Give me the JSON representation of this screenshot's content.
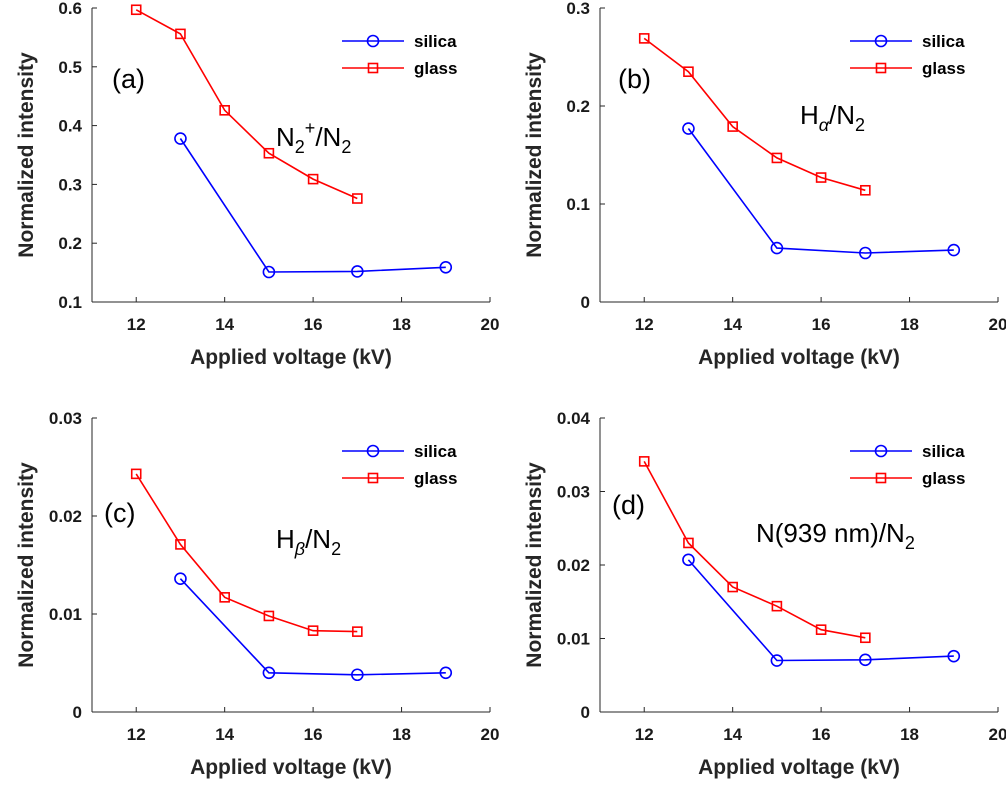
{
  "figure": {
    "x_axis_label": "Applied voltage (kV)",
    "y_axis_label": "Normalized intensity"
  },
  "colors": {
    "silica": "#0000ff",
    "glass": "#ff0000",
    "axis": "#262626"
  },
  "legend": {
    "silica": "silica",
    "glass": "glass"
  },
  "chart_data": [
    {
      "type": "line",
      "panel": "(a)",
      "annotation": {
        "base": "N",
        "sub": "2",
        "sup": "+",
        "rest": "/N",
        "sub2": "2"
      },
      "xlabel": "Applied voltage (kV)",
      "ylabel": "Normalized intensity",
      "xlim": [
        11,
        20
      ],
      "ylim": [
        0.1,
        0.6
      ],
      "xticks": [
        "12",
        "14",
        "16",
        "18",
        "20"
      ],
      "xtick_values": [
        12,
        14,
        16,
        18,
        20
      ],
      "yticks": [
        "0.1",
        "0.2",
        "0.3",
        "0.4",
        "0.5",
        "0.6"
      ],
      "ytick_values": [
        0.1,
        0.2,
        0.3,
        0.4,
        0.5,
        0.6
      ],
      "legend_position": "top-right",
      "series": [
        {
          "name": "silica",
          "x": [
            13,
            15,
            17,
            19
          ],
          "values": [
            0.378,
            0.151,
            0.152,
            0.159
          ]
        },
        {
          "name": "glass",
          "x": [
            12,
            13,
            14,
            15,
            16,
            17
          ],
          "values": [
            0.597,
            0.556,
            0.426,
            0.353,
            0.309,
            0.276
          ]
        }
      ]
    },
    {
      "type": "line",
      "panel": "(b)",
      "annotation": {
        "base": "H",
        "greek": "α",
        "rest": "/N",
        "sub2": "2"
      },
      "xlabel": "Applied voltage (kV)",
      "ylabel": "Normalized intensity",
      "xlim": [
        11,
        20
      ],
      "ylim": [
        0,
        0.3
      ],
      "xticks": [
        "12",
        "14",
        "16",
        "18",
        "20"
      ],
      "xtick_values": [
        12,
        14,
        16,
        18,
        20
      ],
      "yticks": [
        "0",
        "0.1",
        "0.2",
        "0.3"
      ],
      "ytick_values": [
        0,
        0.1,
        0.2,
        0.3
      ],
      "legend_position": "top-right",
      "series": [
        {
          "name": "silica",
          "x": [
            13,
            15,
            17,
            19
          ],
          "values": [
            0.177,
            0.055,
            0.05,
            0.053
          ]
        },
        {
          "name": "glass",
          "x": [
            12,
            13,
            14,
            15,
            16,
            17
          ],
          "values": [
            0.269,
            0.235,
            0.179,
            0.147,
            0.127,
            0.114
          ]
        }
      ]
    },
    {
      "type": "line",
      "panel": "(c)",
      "annotation": {
        "base": "H",
        "greek": "β",
        "rest": "/N",
        "sub2": "2"
      },
      "xlabel": "Applied voltage (kV)",
      "ylabel": "Normalized intensity",
      "xlim": [
        11,
        20
      ],
      "ylim": [
        0,
        0.03
      ],
      "xticks": [
        "12",
        "14",
        "16",
        "18",
        "20"
      ],
      "xtick_values": [
        12,
        14,
        16,
        18,
        20
      ],
      "yticks": [
        "0",
        "0.01",
        "0.02",
        "0.03"
      ],
      "ytick_values": [
        0,
        0.01,
        0.02,
        0.03
      ],
      "legend_position": "top-right",
      "series": [
        {
          "name": "silica",
          "x": [
            13,
            15,
            17,
            19
          ],
          "values": [
            0.0136,
            0.004,
            0.0038,
            0.004
          ]
        },
        {
          "name": "glass",
          "x": [
            12,
            13,
            14,
            15,
            16,
            17
          ],
          "values": [
            0.0243,
            0.0171,
            0.0117,
            0.0098,
            0.0083,
            0.0082
          ]
        }
      ]
    },
    {
      "type": "line",
      "panel": "(d)",
      "annotation": {
        "base": "N(939 nm)",
        "rest": "/N",
        "sub2": "2"
      },
      "xlabel": "Applied voltage (kV)",
      "ylabel": "Normalized intensity",
      "xlim": [
        11,
        20
      ],
      "ylim": [
        0,
        0.04
      ],
      "xticks": [
        "12",
        "14",
        "16",
        "18",
        "20"
      ],
      "xtick_values": [
        12,
        14,
        16,
        18,
        20
      ],
      "yticks": [
        "0",
        "0.01",
        "0.02",
        "0.03",
        "0.04"
      ],
      "ytick_values": [
        0,
        0.01,
        0.02,
        0.03,
        0.04
      ],
      "legend_position": "top-right",
      "series": [
        {
          "name": "silica",
          "x": [
            13,
            15,
            17,
            19
          ],
          "values": [
            0.0207,
            0.007,
            0.0071,
            0.0076
          ]
        },
        {
          "name": "glass",
          "x": [
            12,
            13,
            14,
            15,
            16,
            17
          ],
          "values": [
            0.0341,
            0.023,
            0.017,
            0.0144,
            0.0112,
            0.0101
          ]
        }
      ]
    }
  ]
}
